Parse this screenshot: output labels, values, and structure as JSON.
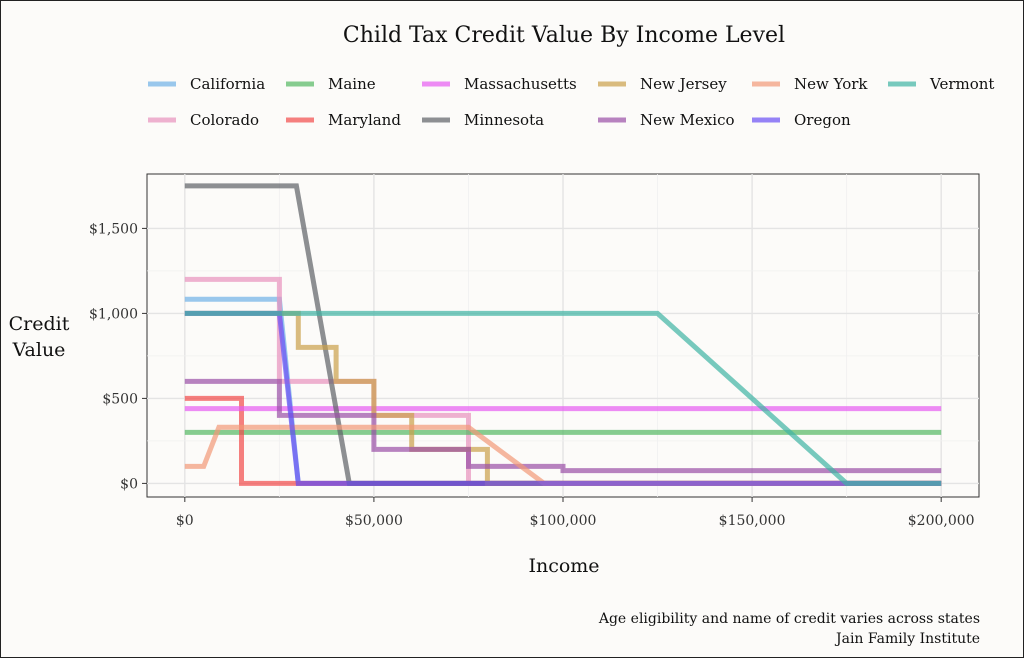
{
  "chart_data": {
    "type": "line",
    "title": "Child Tax Credit Value By Income Level",
    "xlabel": "Income",
    "ylabel": [
      "Credit",
      "Value"
    ],
    "xlim": [
      -10000,
      210000
    ],
    "ylim": [
      -80,
      1820
    ],
    "x_ticks": [
      0,
      50000,
      100000,
      150000,
      200000
    ],
    "x_tick_labels": [
      "$0",
      "$50,000",
      "$100,000",
      "$150,000",
      "$200,000"
    ],
    "y_ticks": [
      0,
      500,
      1000,
      1500
    ],
    "y_tick_labels": [
      "$0",
      "$500",
      "$1,000",
      "$1,500"
    ],
    "grid": true,
    "legend_position": "top",
    "caption": [
      "Age eligibility and name of credit varies across states",
      "Jain Family Institute"
    ],
    "series": [
      {
        "name": "California",
        "color": "#6fb1e7",
        "x": [
          0,
          25000,
          30000,
          200000
        ],
        "y": [
          1083,
          1083,
          0,
          0
        ]
      },
      {
        "name": "Colorado",
        "color": "#e891bd",
        "x": [
          0,
          25000,
          25000,
          50000,
          50000,
          75000,
          75000,
          200000
        ],
        "y": [
          1200,
          1200,
          600,
          600,
          400,
          400,
          0,
          0
        ]
      },
      {
        "name": "Maine",
        "color": "#54b862",
        "x": [
          0,
          200000
        ],
        "y": [
          300,
          300
        ]
      },
      {
        "name": "Maryland",
        "color": "#f24a4a",
        "x": [
          0,
          15000,
          15000,
          200000
        ],
        "y": [
          500,
          500,
          0,
          0
        ]
      },
      {
        "name": "Massachusetts",
        "color": "#e75bf2",
        "x": [
          0,
          200000
        ],
        "y": [
          440,
          440
        ]
      },
      {
        "name": "Minnesota",
        "color": "#5e6166",
        "x": [
          0,
          29500,
          43500,
          200000
        ],
        "y": [
          1750,
          1750,
          0,
          0
        ]
      },
      {
        "name": "New Jersey",
        "color": "#caa04a",
        "x": [
          0,
          30000,
          30000,
          40000,
          40000,
          50000,
          50000,
          60000,
          60000,
          70000,
          70000,
          80000,
          80000,
          200000
        ],
        "y": [
          1000,
          1000,
          800,
          800,
          600,
          600,
          400,
          400,
          200,
          200,
          200,
          200,
          0,
          0
        ]
      },
      {
        "name": "New Mexico",
        "color": "#9a4fa6",
        "x": [
          0,
          25000,
          25000,
          50000,
          50000,
          75000,
          75000,
          100000,
          100000,
          200000
        ],
        "y": [
          600,
          600,
          400,
          400,
          200,
          200,
          100,
          100,
          75,
          75
        ]
      },
      {
        "name": "New York",
        "color": "#f29877",
        "x": [
          0,
          5000,
          9000,
          75000,
          95000,
          200000
        ],
        "y": [
          100,
          100,
          330,
          330,
          0,
          0
        ]
      },
      {
        "name": "Oregon",
        "color": "#6a4ff5",
        "x": [
          0,
          25000,
          30000,
          200000
        ],
        "y": [
          1000,
          1000,
          0,
          0
        ]
      },
      {
        "name": "Vermont",
        "color": "#3fb3a4",
        "x": [
          0,
          125000,
          175000,
          200000
        ],
        "y": [
          1000,
          1000,
          0,
          0
        ]
      }
    ]
  }
}
